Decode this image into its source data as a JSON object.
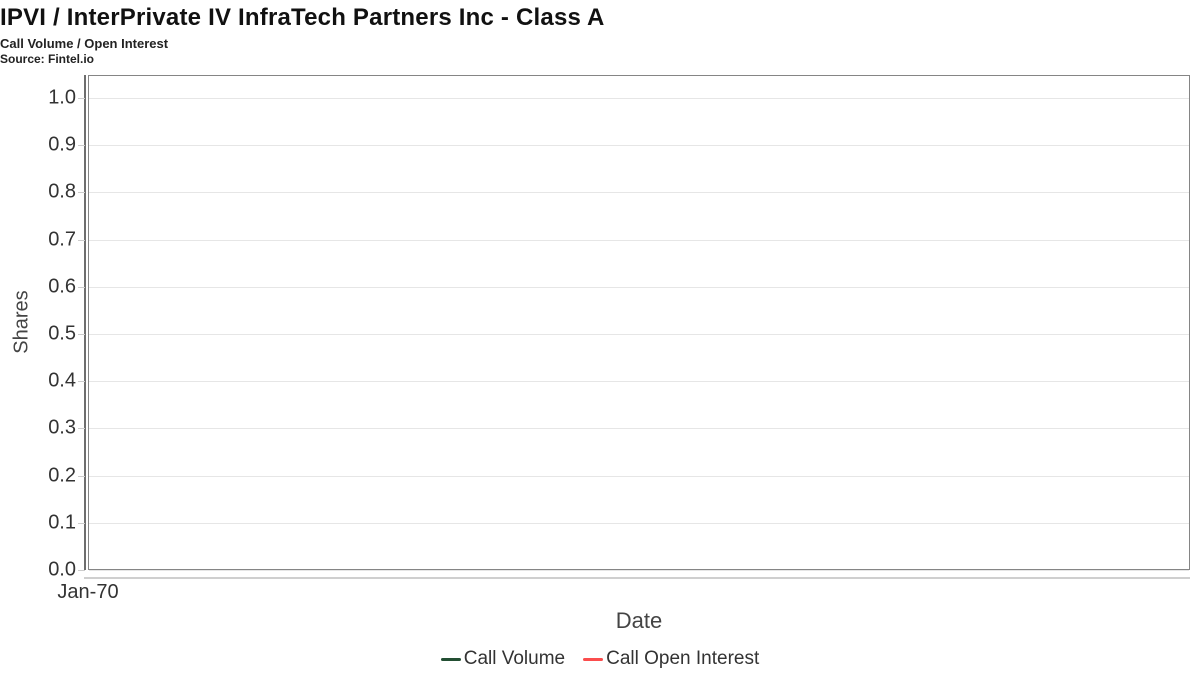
{
  "chart": {
    "title": "IPVI / InterPrivate IV InfraTech Partners Inc - Class A",
    "subtitle": "Call Volume / Open Interest",
    "source": "Source: Fintel.io",
    "xlabel": "Date",
    "ylabel": "Shares"
  },
  "chart_data": {
    "type": "line",
    "title": "IPVI / InterPrivate IV InfraTech Partners Inc - Class A",
    "subtitle": "Call Volume / Open Interest",
    "source": "Source: Fintel.io",
    "xlabel": "Date",
    "ylabel": "Shares",
    "x_ticks": [
      "Jan-70"
    ],
    "y_tick_values": [
      0.0,
      0.1,
      0.2,
      0.3,
      0.4,
      0.5,
      0.6,
      0.7,
      0.8,
      0.9,
      1.0
    ],
    "ylim": [
      0.0,
      1.05
    ],
    "grid": true,
    "legend_position": "bottom",
    "series": [
      {
        "name": "Call Volume",
        "color": "#234f33",
        "x": [],
        "values": []
      },
      {
        "name": "Call Open Interest",
        "color": "#fb4d4d",
        "x": [],
        "values": []
      }
    ]
  },
  "colors": {
    "gridline": "#e6e6e6",
    "plot_border": "#858585",
    "y_axis_line": "#6e6e6e",
    "x_axis_line": "#cfcfcf",
    "tick_label": "#333333",
    "call_volume": "#234f33",
    "call_open_interest": "#fb4d4d"
  }
}
